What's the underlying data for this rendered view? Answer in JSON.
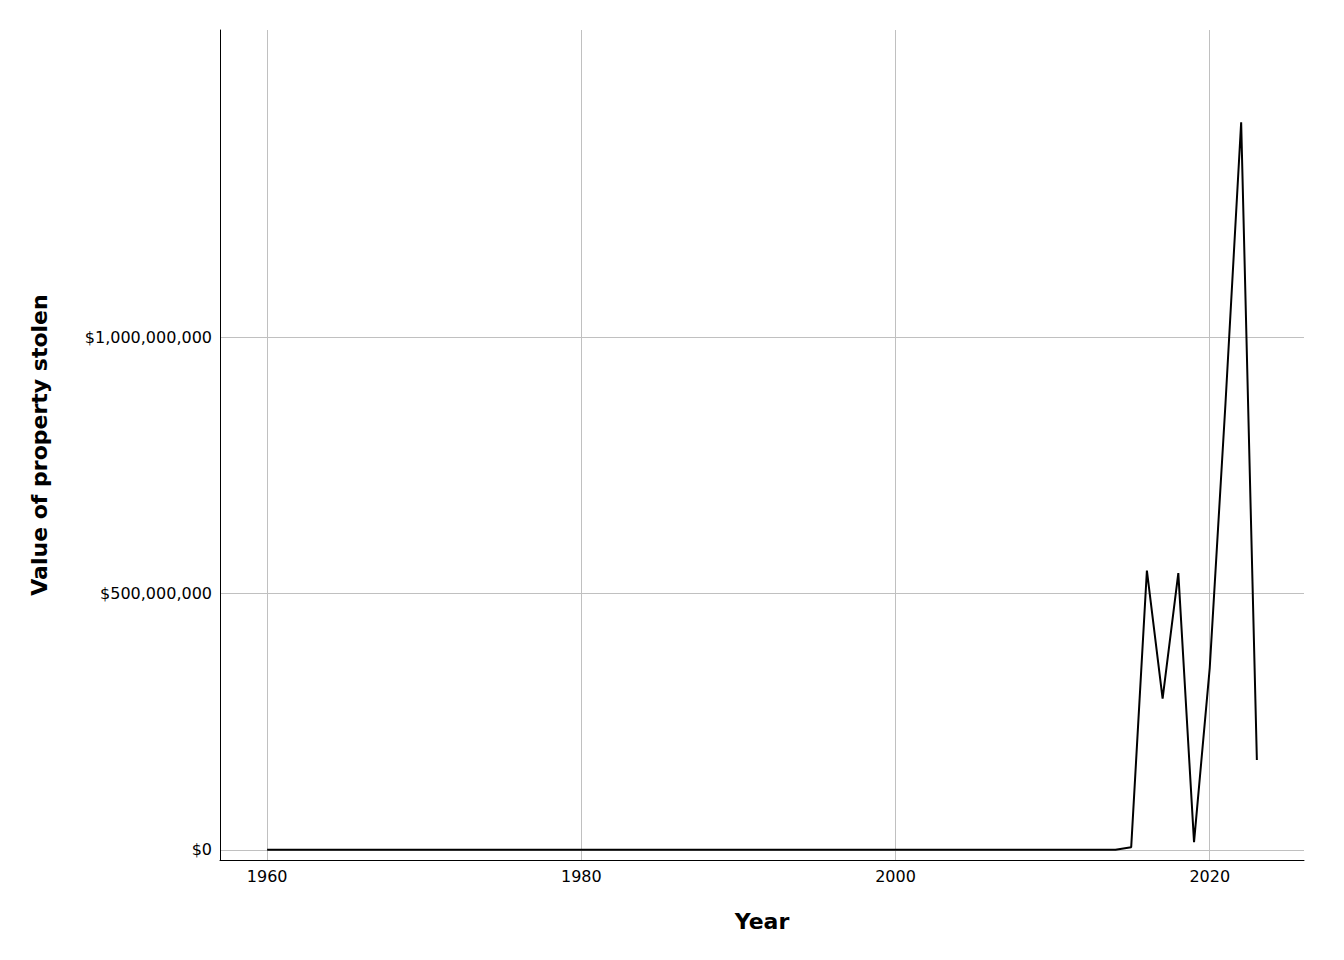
{
  "chart_data": {
    "type": "line",
    "xlabel": "Year",
    "ylabel": "Value of property stolen",
    "x": [
      1960,
      1961,
      1962,
      1963,
      1964,
      1965,
      1966,
      1967,
      1968,
      1969,
      1970,
      1971,
      1972,
      1973,
      1974,
      1975,
      1976,
      1977,
      1978,
      1979,
      1980,
      1981,
      1982,
      1983,
      1984,
      1985,
      1986,
      1987,
      1988,
      1989,
      1990,
      1991,
      1992,
      1993,
      1994,
      1995,
      1996,
      1997,
      1998,
      1999,
      2000,
      2001,
      2002,
      2003,
      2004,
      2005,
      2006,
      2007,
      2008,
      2009,
      2010,
      2011,
      2012,
      2013,
      2014,
      2015,
      2016,
      2017,
      2018,
      2019,
      2020,
      2021,
      2022,
      2023
    ],
    "values": [
      0,
      0,
      0,
      0,
      0,
      0,
      0,
      0,
      0,
      0,
      0,
      0,
      0,
      0,
      0,
      0,
      0,
      0,
      0,
      0,
      0,
      0,
      0,
      0,
      0,
      0,
      0,
      0,
      0,
      0,
      0,
      0,
      14000,
      0,
      0,
      0,
      0,
      0,
      0,
      0,
      0,
      0,
      0,
      0,
      0,
      0,
      0,
      0,
      0,
      0,
      0,
      0,
      0,
      0,
      0,
      5000000,
      545000000,
      295000000,
      540000000,
      15000000,
      355000000,
      870000000,
      1420000000,
      175000000
    ],
    "color": "#000000",
    "xlim": [
      1957,
      2026
    ],
    "ylim": [
      -20000000,
      1600000000
    ],
    "xticks": [
      1960,
      1980,
      2000,
      2020
    ],
    "yticks": [
      {
        "value": 0,
        "label": "$0"
      },
      {
        "value": 500000000,
        "label": "$500,000,000"
      },
      {
        "value": 1000000000,
        "label": "$1,000,000,000"
      }
    ],
    "grid": true
  }
}
